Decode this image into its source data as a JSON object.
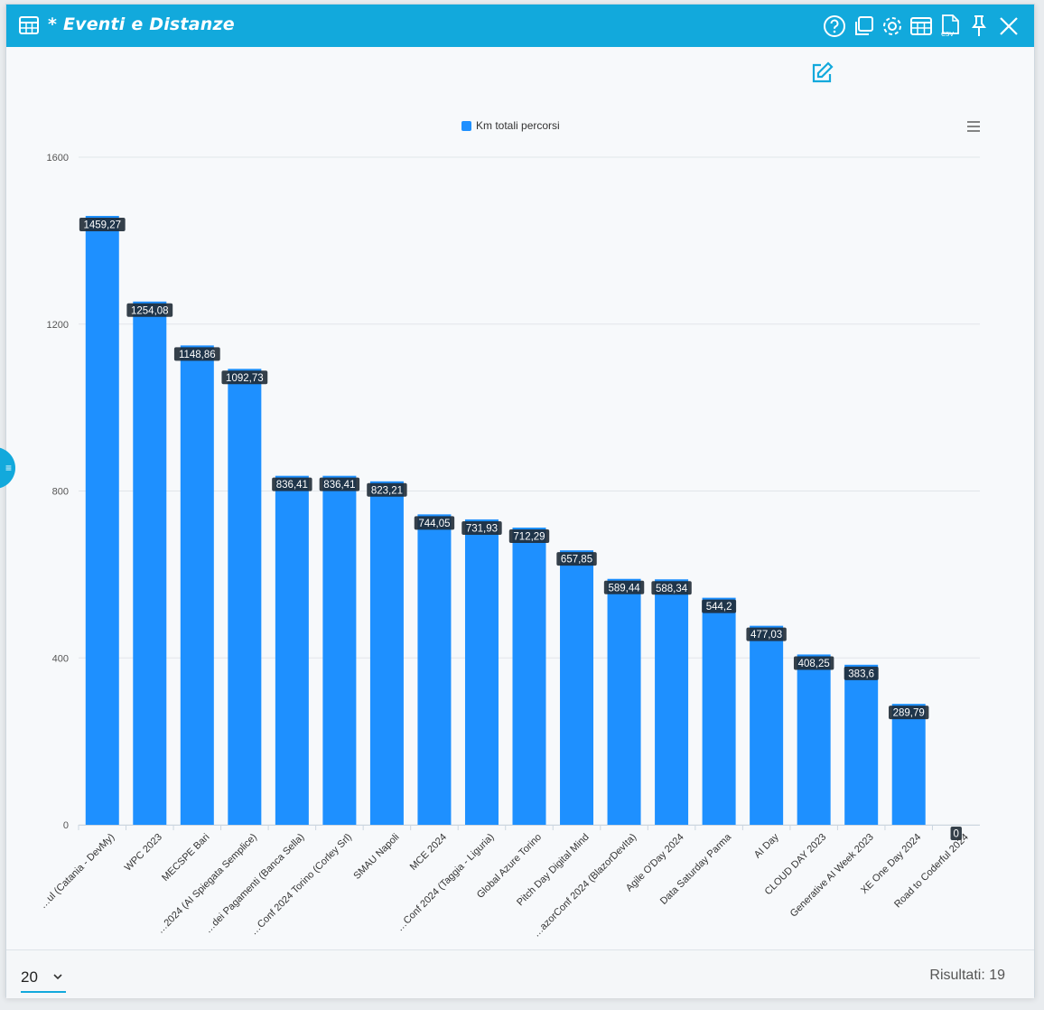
{
  "window": {
    "title": "* Eventi e Distanze",
    "accent_color": "#12a9dc",
    "title_icon": "table-icon",
    "toolbar_icons": [
      "help-icon",
      "duplicate-icon",
      "settings-icon",
      "table-view-icon",
      "csv-export-icon",
      "pin-icon",
      "close-icon"
    ],
    "csv_badge": "CSV"
  },
  "footer": {
    "page_size": "20",
    "results_text": "Risultati: 19"
  },
  "chart_data": {
    "type": "bar",
    "legend": [
      "Km totali percorsi"
    ],
    "legend_position": "top-center",
    "bar_color": "#1e90ff",
    "yticks": [
      "0",
      "400",
      "800",
      "1200",
      "1600"
    ],
    "ylim": [
      0,
      1600
    ],
    "grid": true,
    "categories": [
      "…ul (Catania - DevMy)",
      "WPC 2023",
      "MECSPE Bari",
      "…2024 (AI Spiegata Semplice)",
      "…dei Pagamenti (Banca Sella)",
      "…Conf 2024 Torino (Corley Srl)",
      "SMAU Napoli",
      "MCE 2024",
      "…Conf 2024 (Taggia - Liguria)",
      "Global Azure Torino",
      "Pitch Day Digital Mind",
      "…azorConf 2024 (BlazorDevIta)",
      "Agile O'Day 2024",
      "Data Saturday Parma",
      "AI Day",
      "CLOUD DAY 2023",
      "Generative AI Week 2023",
      "XE One Day 2024",
      "Road to Coderful 2024"
    ],
    "series": [
      {
        "name": "Km totali percorsi",
        "values": [
          1459.27,
          1254.08,
          1148.86,
          1092.73,
          836.41,
          836.41,
          823.21,
          744.05,
          731.93,
          712.29,
          657.85,
          589.44,
          588.34,
          544.2,
          477.03,
          408.25,
          383.6,
          289.79,
          0
        ],
        "labels": [
          "1459,27",
          "1254,08",
          "1148,86",
          "1092,73",
          "836,41",
          "836,41",
          "823,21",
          "744,05",
          "731,93",
          "712,29",
          "657,85",
          "589,44",
          "588,34",
          "544,2",
          "477,03",
          "408,25",
          "383,6",
          "289,79",
          "0"
        ]
      }
    ]
  }
}
